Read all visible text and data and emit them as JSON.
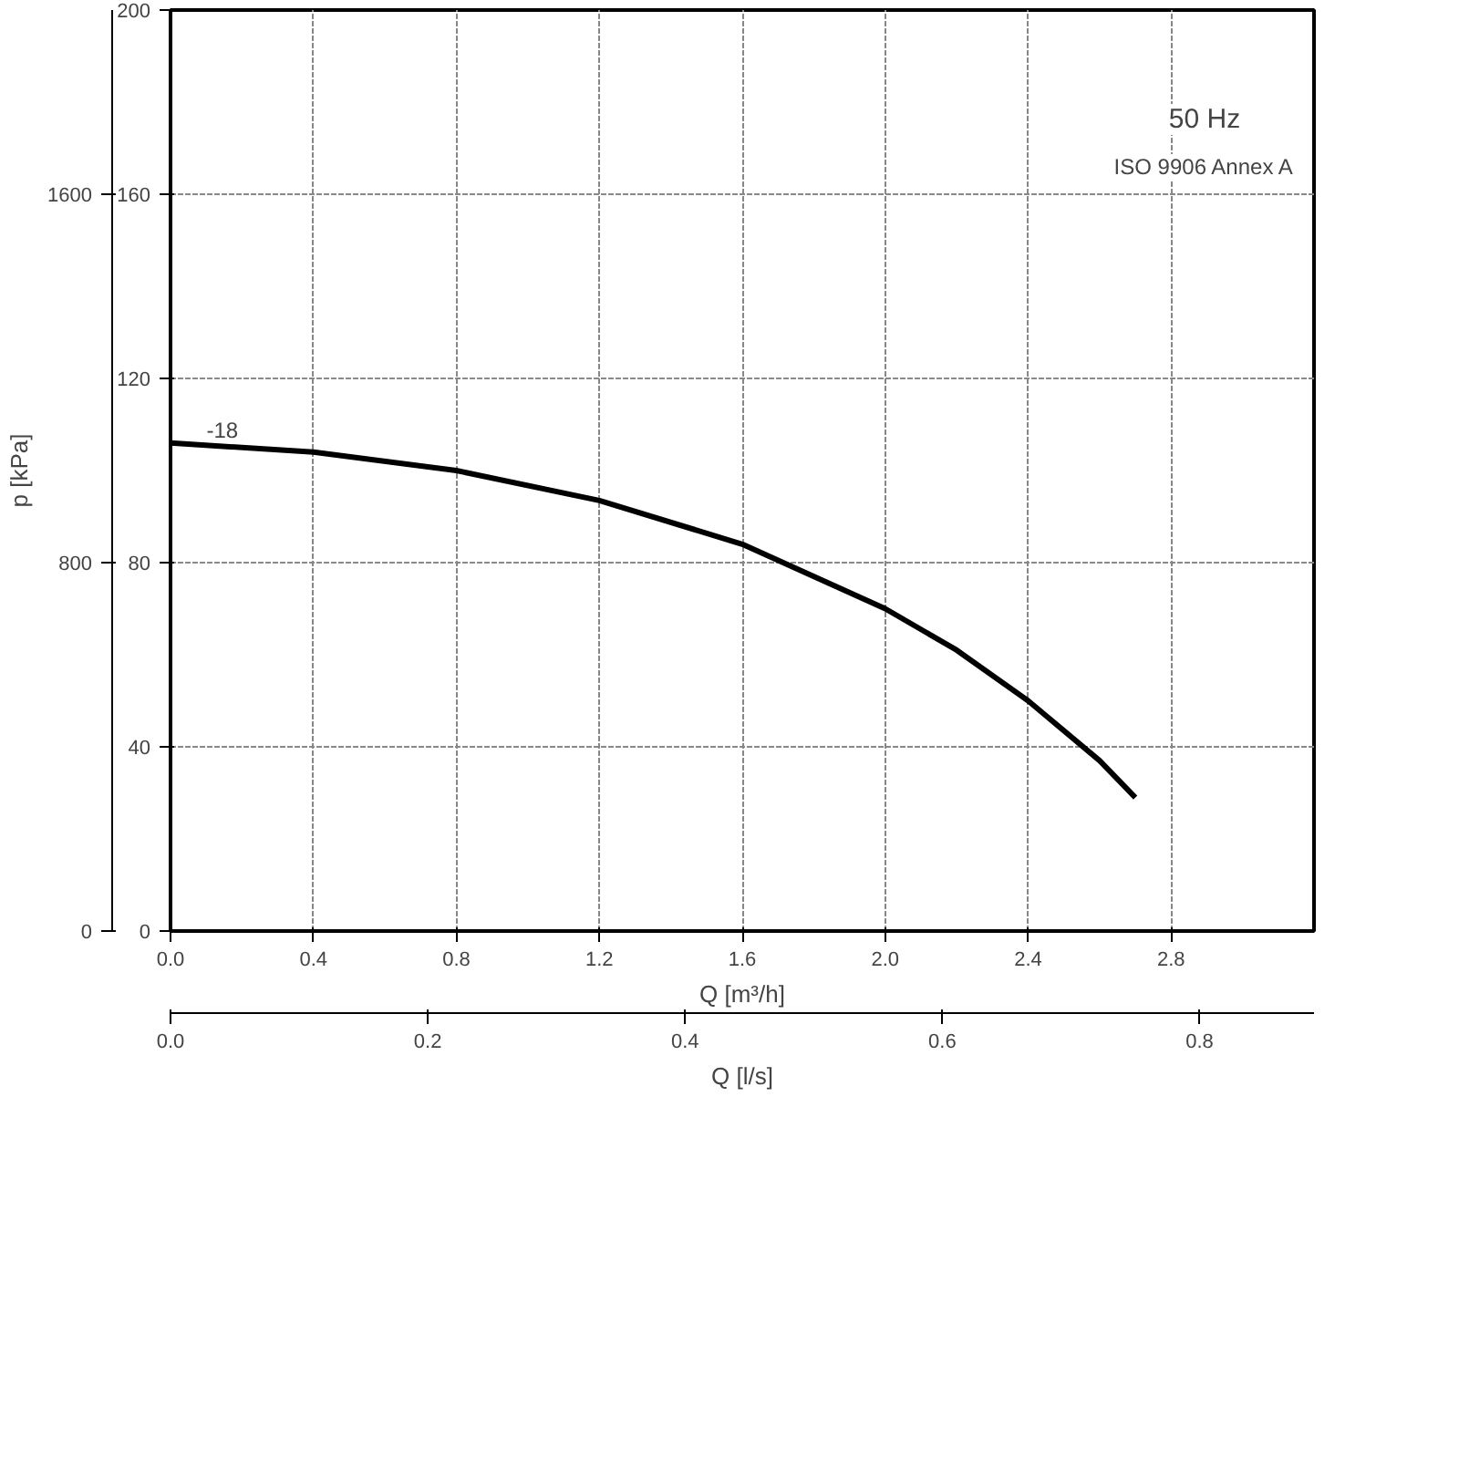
{
  "chart_data": {
    "type": "line",
    "x": [
      0,
      0.4,
      0.8,
      1.2,
      1.6,
      2.0,
      2.2,
      2.4,
      2.6,
      2.7
    ],
    "series": [
      {
        "color": "#000000",
        "values": [
          106,
          104,
          100,
          93.5,
          84,
          70,
          61,
          50,
          37,
          29
        ]
      }
    ],
    "xlabel": "Q [m³/h]",
    "x2label": "Q [l/s]",
    "y2label": "p [kPa]",
    "xlim": [
      0,
      3.2
    ],
    "xticks": [
      {
        "value": 0,
        "label": "0.0"
      },
      {
        "value": 0.4,
        "label": "0.4"
      },
      {
        "value": 0.8,
        "label": "0.8"
      },
      {
        "value": 1.2,
        "label": "1.2"
      },
      {
        "value": 1.6,
        "label": "1.6"
      },
      {
        "value": 2.0,
        "label": "2.0"
      },
      {
        "value": 2.4,
        "label": "2.4"
      },
      {
        "value": 2.8,
        "label": "2.8"
      }
    ],
    "x2lim": [
      0,
      0.889
    ],
    "x2ticks": [
      {
        "value": 0,
        "label": "0.0"
      },
      {
        "value": 0.2,
        "label": "0.2"
      },
      {
        "value": 0.4,
        "label": "0.4"
      },
      {
        "value": 0.6,
        "label": "0.6"
      },
      {
        "value": 0.8,
        "label": "0.8"
      }
    ],
    "ylim": [
      0,
      200
    ],
    "yticks": [
      0,
      40,
      80,
      120,
      160,
      200
    ],
    "y2lim": [
      0,
      2000
    ],
    "y2ticks": [
      0,
      800,
      1600
    ],
    "grid": true,
    "annotations": [
      "-18",
      "50 Hz",
      "ISO 9906 Annex A"
    ]
  }
}
